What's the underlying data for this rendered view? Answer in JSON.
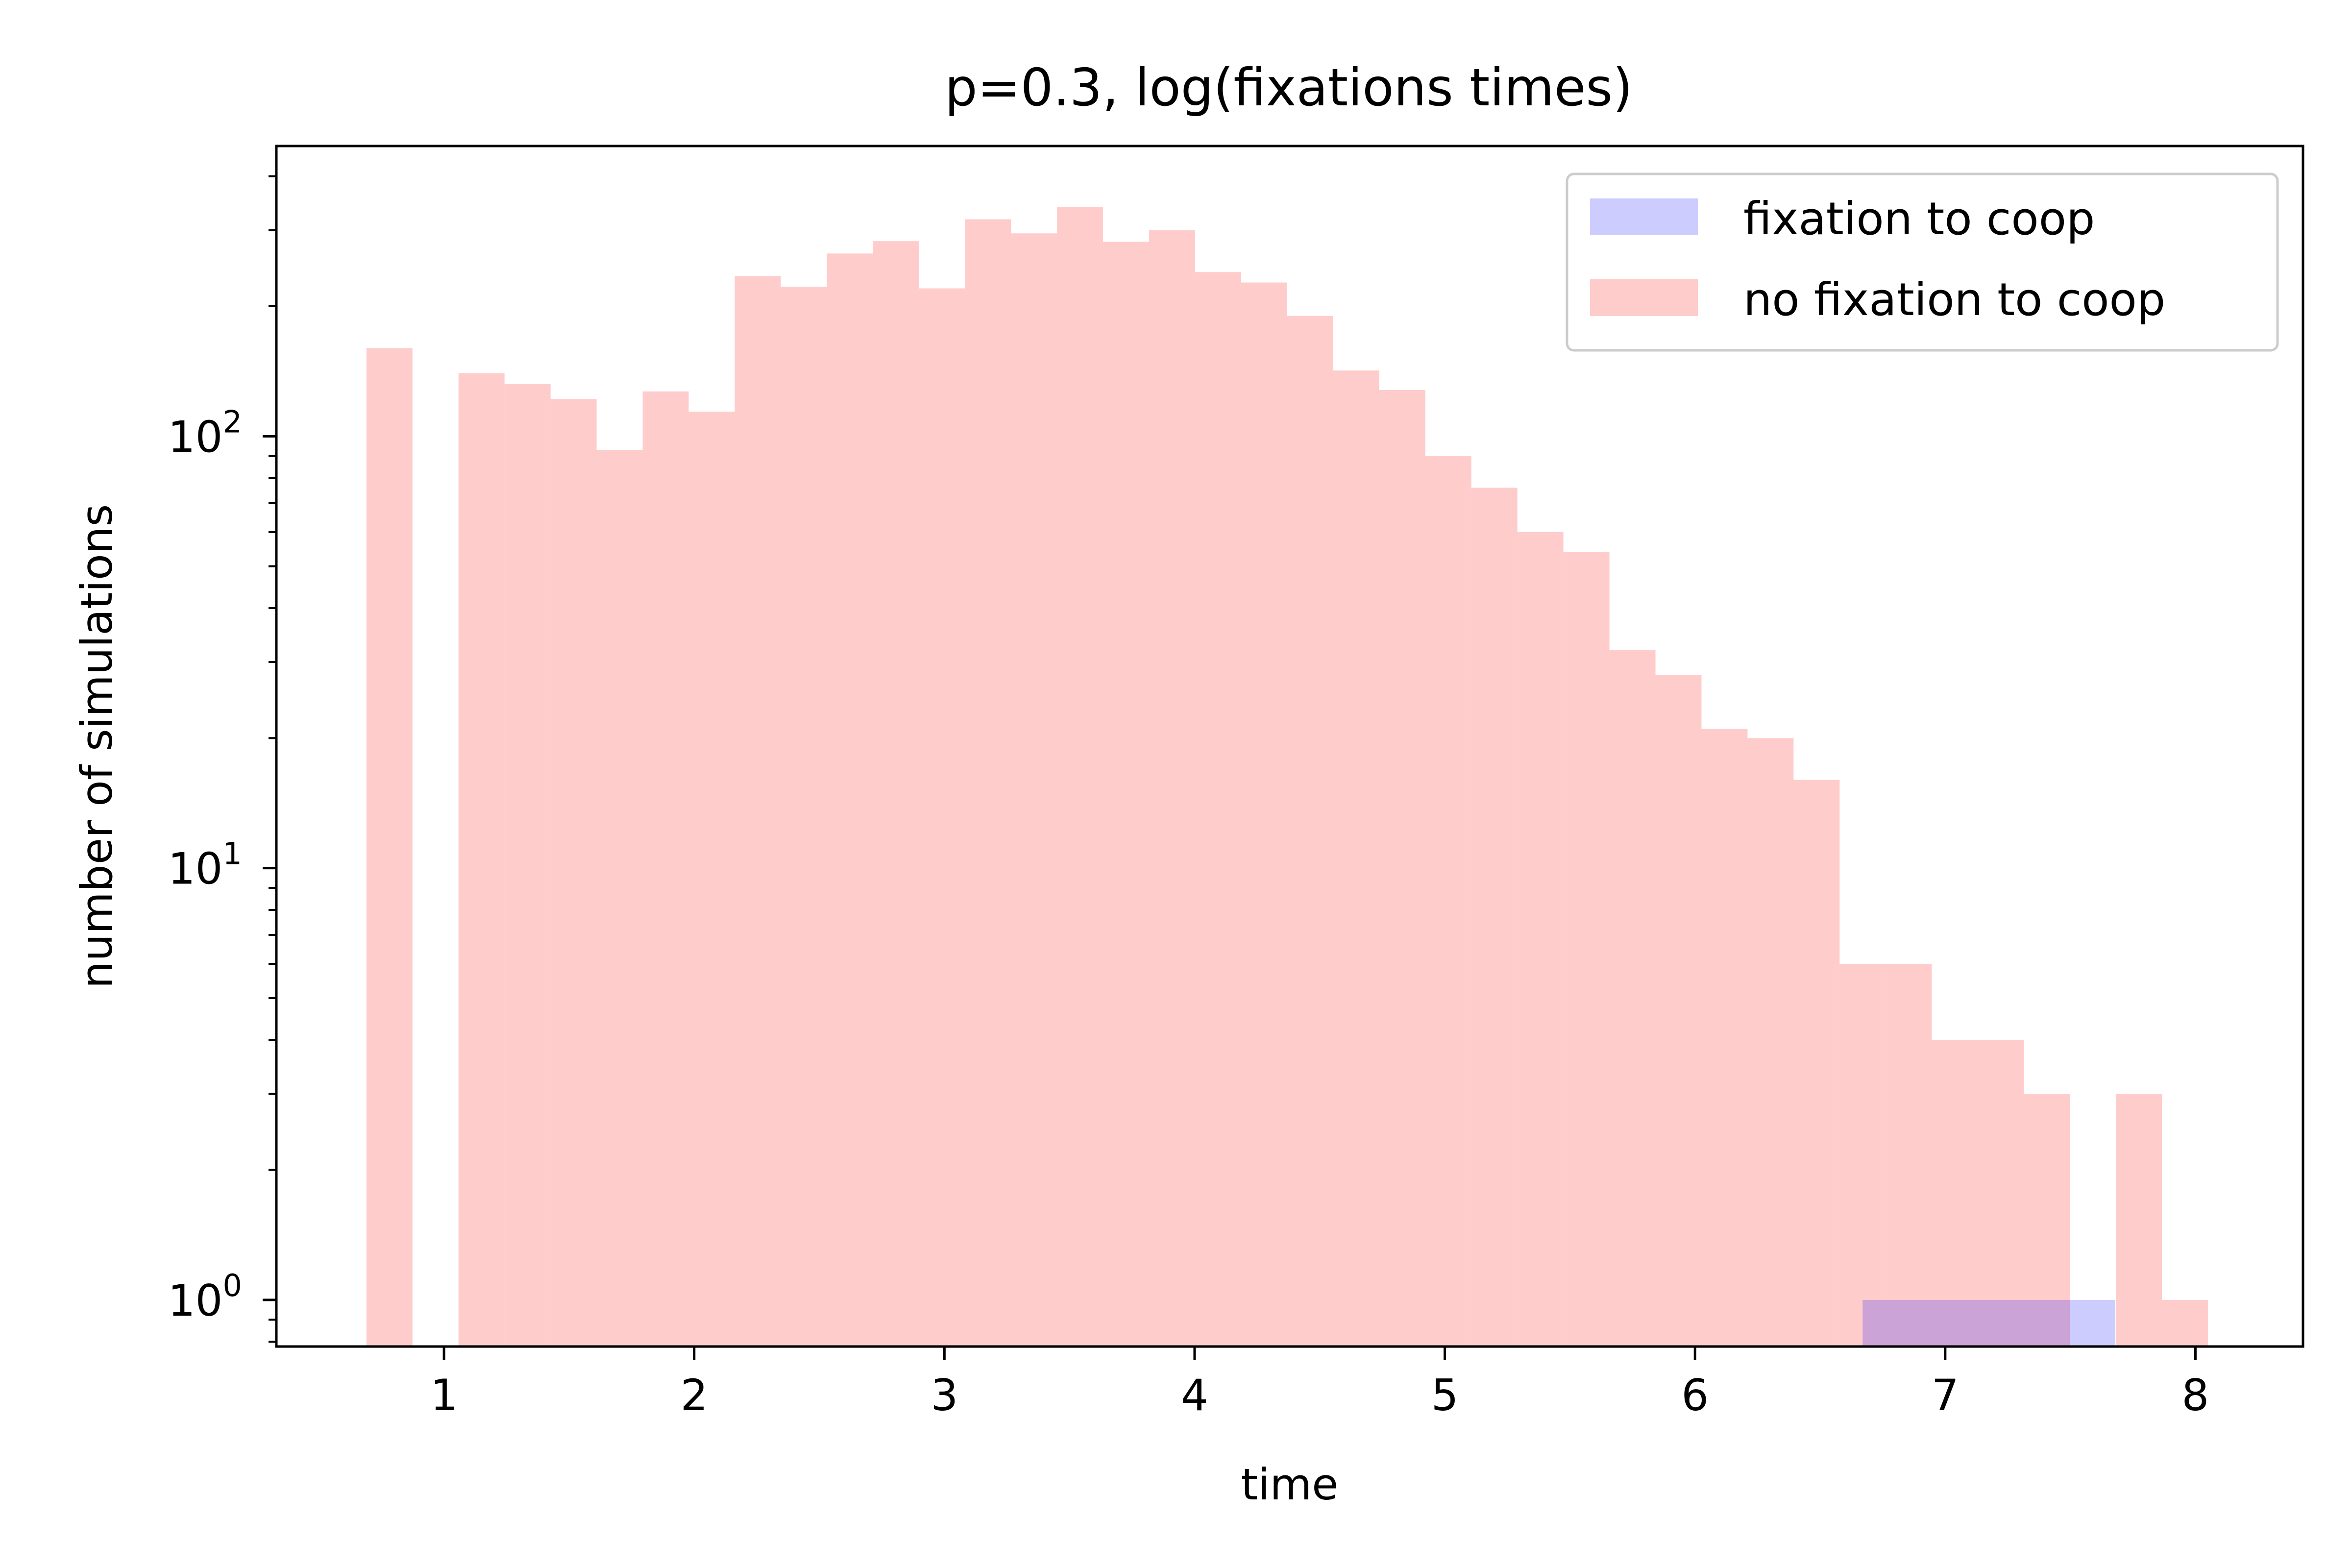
{
  "chart_data": {
    "type": "bar",
    "title": "p=0.3, log(fixations times)",
    "xlabel": "time",
    "ylabel": "number of simulations",
    "xlim": [
      0.33,
      8.43
    ],
    "ylim": [
      0.78,
      470
    ],
    "yscale": "log",
    "grid": false,
    "legend_position": "top-right",
    "x_ticks": [
      1,
      2,
      3,
      4,
      5,
      6,
      7,
      8
    ],
    "x_tick_labels": [
      "1",
      "2",
      "3",
      "4",
      "5",
      "6",
      "7",
      "8"
    ],
    "y_ticks": [
      1,
      10,
      100
    ],
    "y_tick_labels": [
      {
        "base": "10",
        "exp": "0"
      },
      {
        "base": "10",
        "exp": "1"
      },
      {
        "base": "10",
        "exp": "2"
      }
    ],
    "series": [
      {
        "name": "fixation to coop",
        "color": "#0000ff",
        "alpha": 0.2,
        "bins": [
          {
            "x0": 6.67,
            "x1": 7.68,
            "count": 1
          }
        ]
      },
      {
        "name": "no fixation to coop",
        "color": "#ff0000",
        "alpha": 0.2,
        "bins": [
          {
            "x0": 0.69,
            "x1": 0.874,
            "count": 160
          },
          {
            "x0": 0.874,
            "x1": 1.058,
            "count": 0
          },
          {
            "x0": 1.058,
            "x1": 1.242,
            "count": 140
          },
          {
            "x0": 1.242,
            "x1": 1.426,
            "count": 132
          },
          {
            "x0": 1.426,
            "x1": 1.61,
            "count": 122
          },
          {
            "x0": 1.61,
            "x1": 1.794,
            "count": 93
          },
          {
            "x0": 1.794,
            "x1": 1.978,
            "count": 127
          },
          {
            "x0": 1.978,
            "x1": 2.162,
            "count": 114
          },
          {
            "x0": 2.162,
            "x1": 2.346,
            "count": 235
          },
          {
            "x0": 2.346,
            "x1": 2.53,
            "count": 222
          },
          {
            "x0": 2.53,
            "x1": 2.714,
            "count": 265
          },
          {
            "x0": 2.714,
            "x1": 2.898,
            "count": 283
          },
          {
            "x0": 2.898,
            "x1": 3.082,
            "count": 220
          },
          {
            "x0": 3.082,
            "x1": 3.266,
            "count": 318
          },
          {
            "x0": 3.266,
            "x1": 3.45,
            "count": 295
          },
          {
            "x0": 3.45,
            "x1": 3.634,
            "count": 340
          },
          {
            "x0": 3.634,
            "x1": 3.818,
            "count": 282
          },
          {
            "x0": 3.818,
            "x1": 4.002,
            "count": 300
          },
          {
            "x0": 4.002,
            "x1": 4.186,
            "count": 240
          },
          {
            "x0": 4.186,
            "x1": 4.37,
            "count": 227
          },
          {
            "x0": 4.37,
            "x1": 4.554,
            "count": 190
          },
          {
            "x0": 4.554,
            "x1": 4.738,
            "count": 142
          },
          {
            "x0": 4.738,
            "x1": 4.922,
            "count": 128
          },
          {
            "x0": 4.922,
            "x1": 5.106,
            "count": 90
          },
          {
            "x0": 5.106,
            "x1": 5.29,
            "count": 76
          },
          {
            "x0": 5.29,
            "x1": 5.474,
            "count": 60
          },
          {
            "x0": 5.474,
            "x1": 5.658,
            "count": 54
          },
          {
            "x0": 5.658,
            "x1": 5.842,
            "count": 32
          },
          {
            "x0": 5.842,
            "x1": 6.026,
            "count": 28
          },
          {
            "x0": 6.026,
            "x1": 6.21,
            "count": 21
          },
          {
            "x0": 6.21,
            "x1": 6.394,
            "count": 20
          },
          {
            "x0": 6.394,
            "x1": 6.578,
            "count": 16
          },
          {
            "x0": 6.578,
            "x1": 6.762,
            "count": 6
          },
          {
            "x0": 6.762,
            "x1": 6.946,
            "count": 6
          },
          {
            "x0": 6.946,
            "x1": 7.13,
            "count": 4
          },
          {
            "x0": 7.13,
            "x1": 7.314,
            "count": 4
          },
          {
            "x0": 7.314,
            "x1": 7.498,
            "count": 3
          },
          {
            "x0": 7.498,
            "x1": 7.682,
            "count": 0
          },
          {
            "x0": 7.682,
            "x1": 7.866,
            "count": 3
          },
          {
            "x0": 7.866,
            "x1": 8.05,
            "count": 1
          }
        ]
      }
    ]
  }
}
